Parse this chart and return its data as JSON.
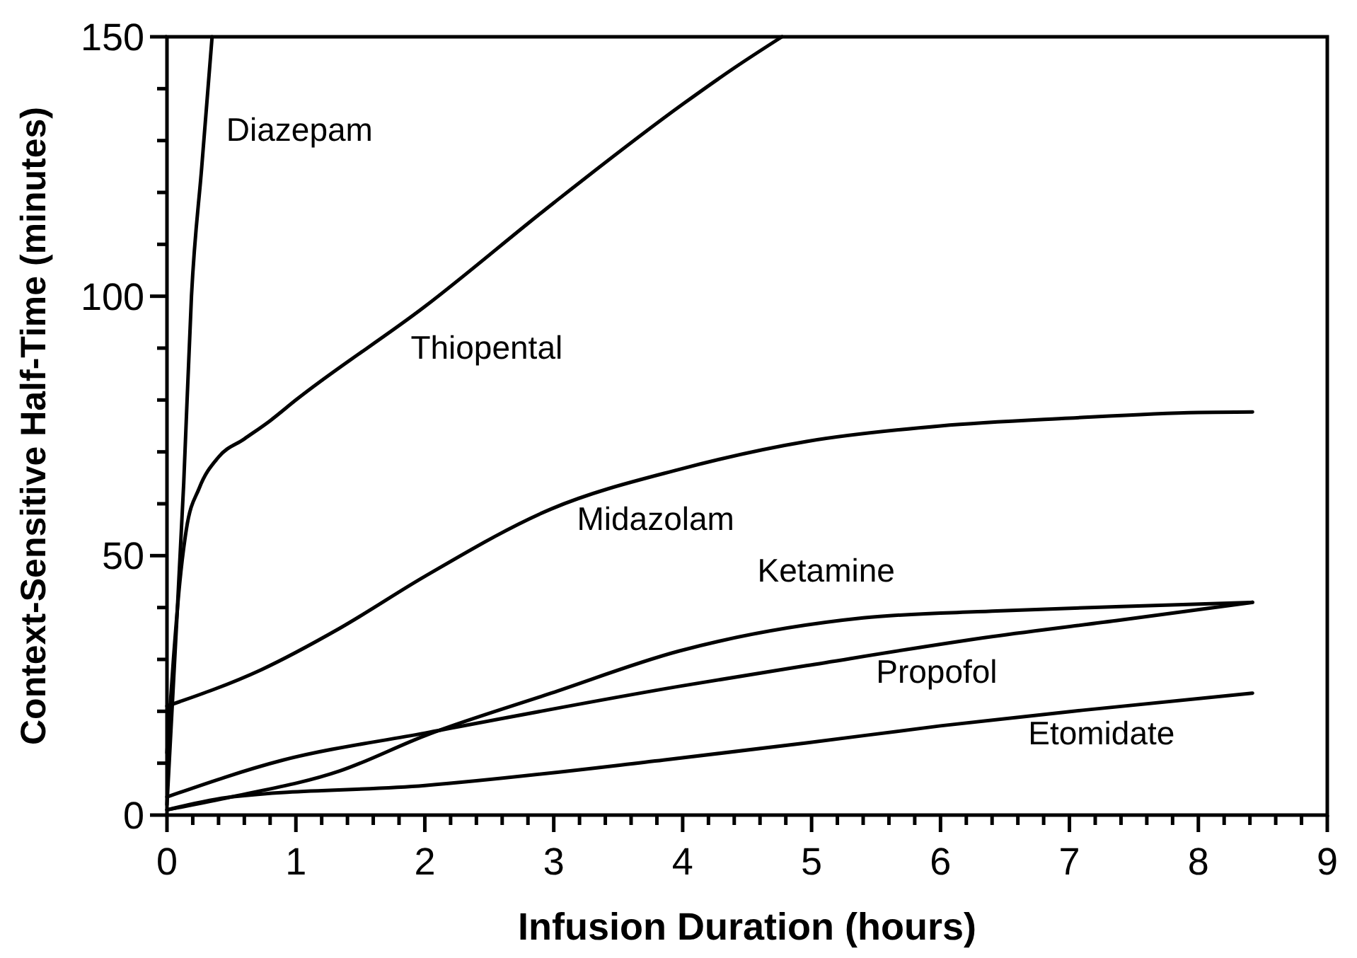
{
  "chart_data": {
    "type": "line",
    "xlabel": "Infusion Duration (hours)",
    "ylabel": "Context-Sensitive Half-Time (minutes)",
    "xlim": [
      0,
      9
    ],
    "ylim": [
      0,
      150
    ],
    "xticks": [
      0,
      {
        "value": 0.2,
        "label": null
      },
      {
        "value": 0.4,
        "label": null
      },
      {
        "value": 0.6,
        "label": null
      },
      {
        "value": 0.8,
        "label": null
      },
      1,
      {
        "value": 1.2,
        "label": null
      },
      {
        "value": 1.4,
        "label": null
      },
      {
        "value": 1.6,
        "label": null
      },
      {
        "value": 1.8,
        "label": null
      },
      2,
      {
        "value": 2.2,
        "label": null
      },
      {
        "value": 2.4,
        "label": null
      },
      {
        "value": 2.6,
        "label": null
      },
      {
        "value": 2.8,
        "label": null
      },
      3,
      {
        "value": 3.2,
        "label": null
      },
      {
        "value": 3.4,
        "label": null
      },
      {
        "value": 3.6,
        "label": null
      },
      {
        "value": 3.8,
        "label": null
      },
      4,
      {
        "value": 4.2,
        "label": null
      },
      {
        "value": 4.4,
        "label": null
      },
      {
        "value": 4.6,
        "label": null
      },
      {
        "value": 4.8,
        "label": null
      },
      5,
      {
        "value": 5.2,
        "label": null
      },
      {
        "value": 5.4,
        "label": null
      },
      {
        "value": 5.6,
        "label": null
      },
      {
        "value": 5.8,
        "label": null
      },
      6,
      {
        "value": 6.2,
        "label": null
      },
      {
        "value": 6.4,
        "label": null
      },
      {
        "value": 6.6,
        "label": null
      },
      {
        "value": 6.8,
        "label": null
      },
      7,
      {
        "value": 7.2,
        "label": null
      },
      {
        "value": 7.4,
        "label": null
      },
      {
        "value": 7.6,
        "label": null
      },
      {
        "value": 7.8,
        "label": null
      },
      8,
      {
        "value": 8.2,
        "label": null
      },
      {
        "value": 8.4,
        "label": null
      },
      {
        "value": 8.6,
        "label": null
      },
      {
        "value": 8.8,
        "label": null
      },
      9
    ],
    "yticks": [
      0,
      {
        "value": 10,
        "label": null
      },
      {
        "value": 20,
        "label": null
      },
      {
        "value": 30,
        "label": null
      },
      {
        "value": 40,
        "label": null
      },
      50,
      {
        "value": 60,
        "label": null
      },
      {
        "value": 70,
        "label": null
      },
      {
        "value": 80,
        "label": null
      },
      {
        "value": 90,
        "label": null
      },
      100,
      {
        "value": 110,
        "label": null
      },
      {
        "value": 120,
        "label": null
      },
      {
        "value": 130,
        "label": null
      },
      {
        "value": 140,
        "label": null
      },
      150
    ],
    "grid": false,
    "marker": "none",
    "line_style": "solid",
    "series": [
      {
        "name": "Diazepam",
        "color": "#000000",
        "x": [
          0,
          0.06,
          0.13,
          0.19,
          0.27,
          0.35
        ],
        "values": [
          2,
          30,
          64,
          100,
          125,
          150
        ]
      },
      {
        "name": "Thiopental",
        "color": "#000000",
        "x": [
          0,
          0.05,
          0.1,
          0.15,
          0.25,
          0.4,
          0.6,
          0.8,
          1,
          2,
          3,
          4,
          4.4,
          4.77
        ],
        "values": [
          12,
          30,
          45,
          55,
          63,
          69,
          72.5,
          76,
          80,
          98,
          118,
          137,
          144,
          150
        ]
      },
      {
        "name": "Midazolam",
        "color": "#000000",
        "x": [
          0,
          0.73,
          1.34,
          2,
          2.98,
          3.97,
          4.96,
          6,
          7,
          8,
          8.42
        ],
        "values": [
          21,
          28,
          36,
          46,
          59,
          66.6,
          72,
          75,
          76.5,
          77.6,
          77.7
        ]
      },
      {
        "name": "Ketamine",
        "color": "#000000",
        "x": [
          0,
          0.5,
          1.34,
          2,
          2.98,
          3.97,
          5.4,
          6.4,
          7.4,
          8.42
        ],
        "values": [
          1,
          3.5,
          8.5,
          15.3,
          23.5,
          31.6,
          38,
          39.3,
          40.2,
          41
        ]
      },
      {
        "name": "Propofol",
        "color": "#000000",
        "x": [
          0,
          0.9,
          2,
          3.97,
          4.96,
          6.4,
          7.4,
          8.42
        ],
        "values": [
          3.5,
          10.6,
          15.8,
          24.8,
          28.8,
          34.4,
          37.6,
          41
        ]
      },
      {
        "name": "Etomidate",
        "color": "#000000",
        "x": [
          0,
          0.5,
          2,
          3.85,
          4.96,
          6,
          7.1,
          8.42
        ],
        "values": [
          1,
          3.5,
          5.7,
          10.6,
          13.9,
          17.2,
          20.2,
          23.5
        ]
      }
    ]
  }
}
